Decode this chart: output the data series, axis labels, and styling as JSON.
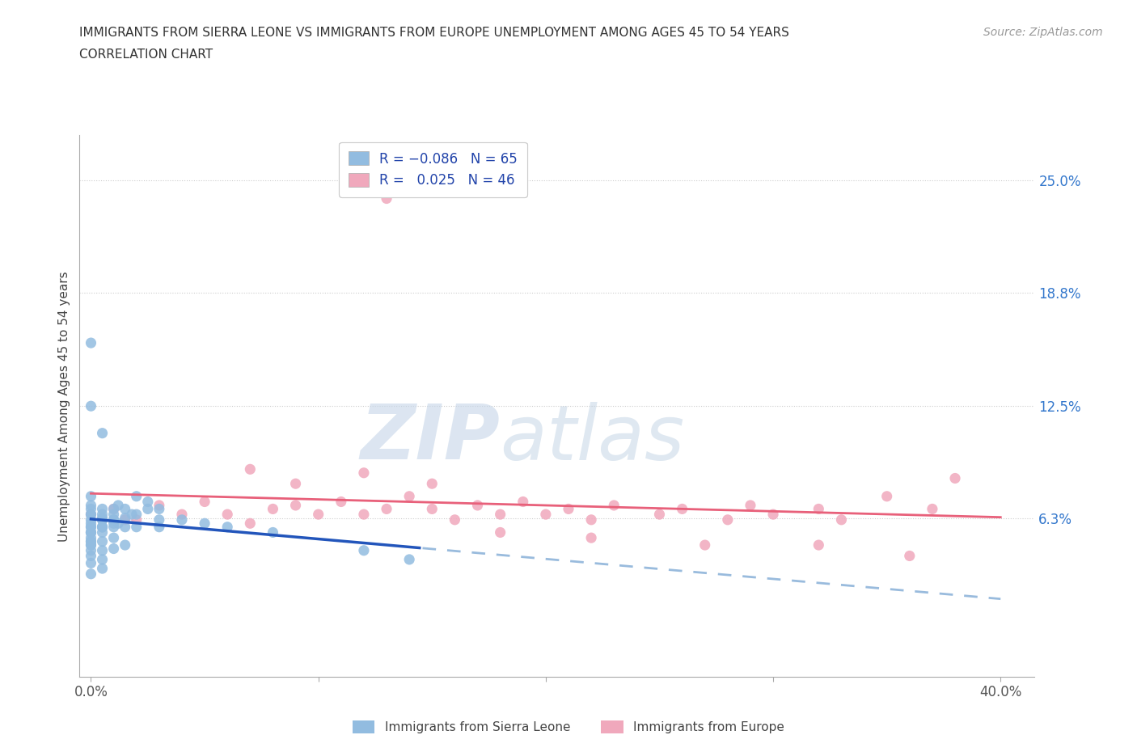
{
  "title_line1": "IMMIGRANTS FROM SIERRA LEONE VS IMMIGRANTS FROM EUROPE UNEMPLOYMENT AMONG AGES 45 TO 54 YEARS",
  "title_line2": "CORRELATION CHART",
  "source_text": "Source: ZipAtlas.com",
  "ylabel": "Unemployment Among Ages 45 to 54 years",
  "watermark_zip": "ZIP",
  "watermark_atlas": "atlas",
  "sierra_leone_color": "#92bce0",
  "europe_color": "#f0a8bc",
  "sierra_leone_trend_solid_color": "#2255bb",
  "sierra_leone_trend_dash_color": "#99bbdd",
  "europe_trend_color": "#e8607a",
  "grid_color": "#cccccc",
  "background_color": "#ffffff",
  "ytick_vals": [
    0.0,
    0.063,
    0.125,
    0.188,
    0.25
  ],
  "ytick_labels": [
    "",
    "6.3%",
    "12.5%",
    "18.8%",
    "25.0%"
  ],
  "xtick_vals": [
    0.0,
    0.1,
    0.2,
    0.3,
    0.4
  ],
  "xtick_labels": [
    "0.0%",
    "",
    "",
    "",
    "40.0%"
  ],
  "xlim": [
    -0.005,
    0.415
  ],
  "ylim": [
    -0.025,
    0.275
  ],
  "sl_x": [
    0.0,
    0.0,
    0.0,
    0.0,
    0.0,
    0.0,
    0.0,
    0.0,
    0.0,
    0.0,
    0.005,
    0.005,
    0.005,
    0.005,
    0.005,
    0.005,
    0.005,
    0.01,
    0.01,
    0.01,
    0.01,
    0.01,
    0.012,
    0.012,
    0.015,
    0.015,
    0.015,
    0.018,
    0.02,
    0.02,
    0.025,
    0.03,
    0.03,
    0.04,
    0.05,
    0.06,
    0.08,
    0.0,
    0.0,
    0.0,
    0.0,
    0.0,
    0.0,
    0.005,
    0.005,
    0.005,
    0.01,
    0.01,
    0.015,
    0.02,
    0.025,
    0.03,
    0.005,
    0.0,
    0.0,
    0.01,
    0.005,
    0.0,
    0.0,
    0.005,
    0.0,
    0.12,
    0.14,
    0.005,
    0.0,
    0.0
  ],
  "sl_y": [
    0.062,
    0.065,
    0.058,
    0.055,
    0.05,
    0.048,
    0.045,
    0.042,
    0.038,
    0.032,
    0.062,
    0.058,
    0.055,
    0.05,
    0.045,
    0.04,
    0.035,
    0.068,
    0.062,
    0.058,
    0.052,
    0.046,
    0.07,
    0.06,
    0.068,
    0.058,
    0.048,
    0.065,
    0.075,
    0.058,
    0.072,
    0.068,
    0.058,
    0.062,
    0.06,
    0.058,
    0.055,
    0.075,
    0.07,
    0.065,
    0.06,
    0.055,
    0.05,
    0.068,
    0.063,
    0.058,
    0.065,
    0.06,
    0.063,
    0.065,
    0.068,
    0.062,
    0.11,
    0.16,
    0.125,
    0.062,
    0.058,
    0.055,
    0.052,
    0.065,
    0.048,
    0.045,
    0.04,
    0.062,
    0.058,
    0.068
  ],
  "eu_x": [
    0.13,
    0.0,
    0.01,
    0.02,
    0.03,
    0.04,
    0.05,
    0.06,
    0.07,
    0.08,
    0.09,
    0.1,
    0.11,
    0.12,
    0.13,
    0.14,
    0.15,
    0.16,
    0.17,
    0.18,
    0.19,
    0.2,
    0.21,
    0.22,
    0.23,
    0.25,
    0.26,
    0.28,
    0.29,
    0.3,
    0.32,
    0.33,
    0.35,
    0.37,
    0.38,
    0.07,
    0.09,
    0.12,
    0.15,
    0.18,
    0.22,
    0.27,
    0.32,
    0.36,
    0.015
  ],
  "eu_y": [
    0.24,
    0.065,
    0.068,
    0.062,
    0.07,
    0.065,
    0.072,
    0.065,
    0.06,
    0.068,
    0.07,
    0.065,
    0.072,
    0.065,
    0.068,
    0.075,
    0.068,
    0.062,
    0.07,
    0.065,
    0.072,
    0.065,
    0.068,
    0.062,
    0.07,
    0.065,
    0.068,
    0.062,
    0.07,
    0.065,
    0.068,
    0.062,
    0.075,
    0.068,
    0.085,
    0.09,
    0.082,
    0.088,
    0.082,
    0.055,
    0.052,
    0.048,
    0.048,
    0.042,
    0.062
  ]
}
